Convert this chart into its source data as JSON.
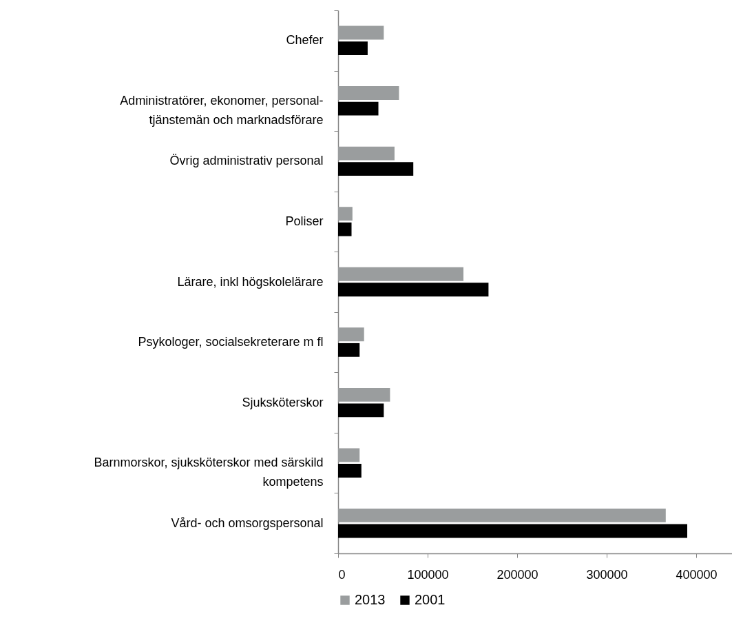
{
  "chart_data": {
    "type": "bar",
    "orientation": "horizontal",
    "categories": [
      "Chefer",
      "Administratörer, ekonomer, personal-tjänstemän och marknadsförare",
      "Övrig administrativ personal",
      "Poliser",
      "Lärare, inkl högskolelärare",
      "Psykologer, socialsekreterare m fl",
      "Sjuksköterskor",
      "Barnmorskor, sjuksköterskor med särskild kompetens",
      "Vård- och omsorgspersonal"
    ],
    "series": [
      {
        "name": "2013",
        "color": "#9a9d9e",
        "values": [
          51000,
          68000,
          63000,
          16000,
          140000,
          29000,
          58000,
          24000,
          366000
        ]
      },
      {
        "name": "2001",
        "color": "#000000",
        "values": [
          33000,
          45000,
          84000,
          15000,
          168000,
          24000,
          51000,
          26000,
          390000
        ]
      }
    ],
    "xlim": [
      0,
      440000
    ],
    "xticks": [
      0,
      100000,
      200000,
      300000,
      400000
    ],
    "grid": false,
    "legend": "bottom"
  }
}
